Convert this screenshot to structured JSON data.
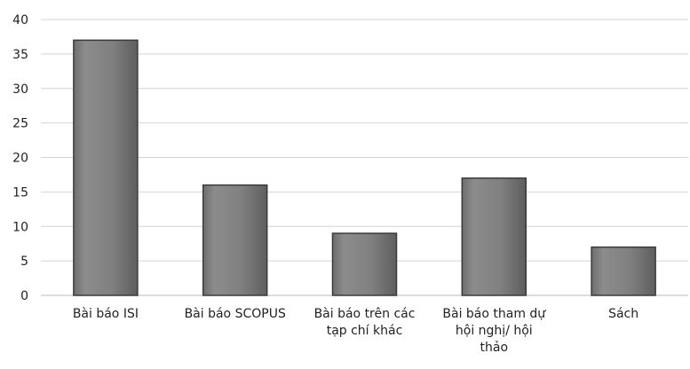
{
  "chart_data": {
    "type": "bar",
    "title": "",
    "xlabel": "",
    "ylabel": "",
    "ylim": [
      0,
      40
    ],
    "yticks": [
      0,
      5,
      10,
      15,
      20,
      25,
      30,
      35,
      40
    ],
    "grid": true,
    "legend": "none",
    "categories": [
      [
        "Bài báo ISI"
      ],
      [
        "Bài báo SCOPUS"
      ],
      [
        "Bài báo trên các",
        "tạp chí khác"
      ],
      [
        "Bài báo tham dự",
        "hội nghị/ hội",
        "thảo"
      ],
      [
        "Sách"
      ]
    ],
    "values": [
      37,
      16,
      9,
      17,
      7
    ],
    "colors": {
      "bar_fill": "#7f7f7f",
      "bar_edge": "#3a3a3a",
      "grid": "#d4d4d4"
    }
  }
}
